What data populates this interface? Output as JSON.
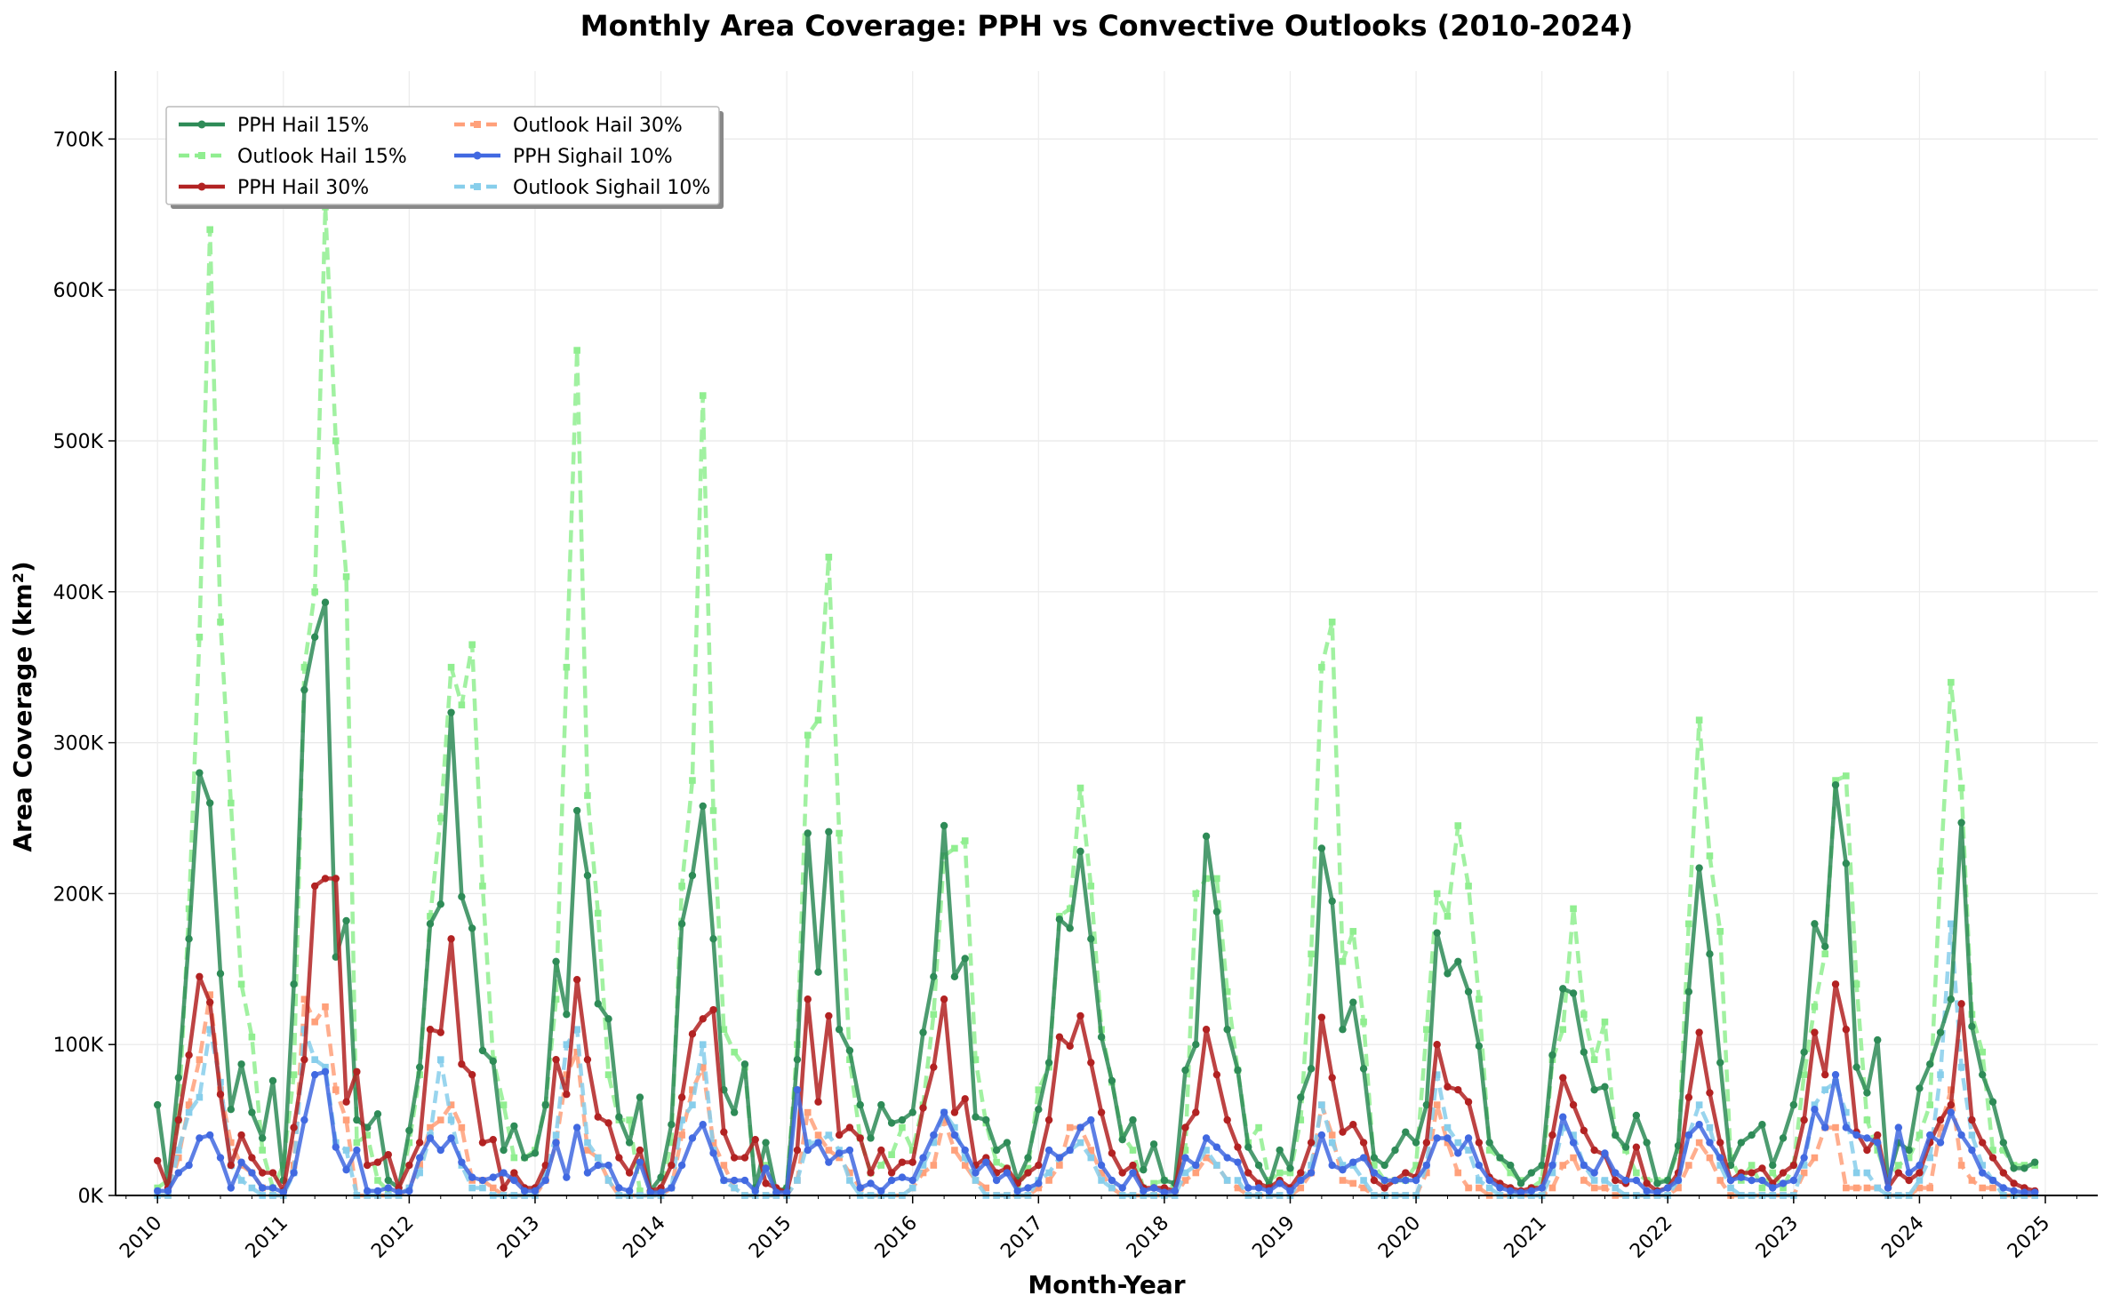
{
  "chart_data": {
    "type": "line",
    "title": "Monthly Area Coverage: PPH vs Convective Outlooks (2010-2024)",
    "xlabel": "Month-Year",
    "ylabel": "Area Coverage (km²)",
    "ylim": [
      0,
      745000
    ],
    "y_ticks": [
      {
        "value": 0,
        "label": "0K"
      },
      {
        "value": 100000,
        "label": "100K"
      },
      {
        "value": 200000,
        "label": "200K"
      },
      {
        "value": 300000,
        "label": "300K"
      },
      {
        "value": 400000,
        "label": "400K"
      },
      {
        "value": 500000,
        "label": "500K"
      },
      {
        "value": 600000,
        "label": "600K"
      },
      {
        "value": 700000,
        "label": "700K"
      }
    ],
    "x_ticks": [
      "2010",
      "2011",
      "2012",
      "2013",
      "2014",
      "2015",
      "2016",
      "2017",
      "2018",
      "2019",
      "2020",
      "2021",
      "2022",
      "2023",
      "2024",
      "2025"
    ],
    "x_range": [
      "2009-09",
      "2025-06"
    ],
    "grid": true,
    "legend_position": "top-left",
    "start_month": "2010-01",
    "series": [
      {
        "name": "PPH Hail 15%",
        "color": "#2e8b57",
        "style": "solid",
        "marker": "circle",
        "values": [
          60000,
          8000,
          78000,
          170000,
          280000,
          260000,
          147000,
          57000,
          87000,
          55000,
          38000,
          76000,
          10000,
          140000,
          335000,
          370000,
          393000,
          158000,
          182000,
          50000,
          45000,
          54000,
          10000,
          5000,
          43000,
          85000,
          180000,
          193000,
          320000,
          198000,
          177000,
          96000,
          89000,
          30000,
          46000,
          25000,
          28000,
          60000,
          155000,
          120000,
          255000,
          212000,
          127000,
          117000,
          52000,
          35000,
          65000,
          3000,
          12000,
          47000,
          180000,
          212000,
          258000,
          170000,
          70000,
          55000,
          87000,
          5000,
          35000,
          2000,
          5000,
          90000,
          240000,
          148000,
          241000,
          110000,
          96000,
          60000,
          38000,
          60000,
          48000,
          50000,
          55000,
          108000,
          145000,
          245000,
          145000,
          157000,
          52000,
          50000,
          30000,
          35000,
          10000,
          25000,
          57000,
          88000,
          183000,
          177000,
          228000,
          170000,
          105000,
          76000,
          37000,
          50000,
          17000,
          34000,
          10000,
          8000,
          83000,
          100000,
          238000,
          188000,
          110000,
          83000,
          32000,
          20000,
          7000,
          30000,
          18000,
          65000,
          84000,
          230000,
          195000,
          110000,
          128000,
          84000,
          25000,
          20000,
          30000,
          42000,
          35000,
          60000,
          174000,
          147000,
          155000,
          135000,
          99000,
          35000,
          25000,
          20000,
          8000,
          15000,
          20000,
          93000,
          137000,
          134000,
          95000,
          70000,
          72000,
          40000,
          32000,
          53000,
          35000,
          8000,
          10000,
          33000,
          135000,
          217000,
          160000,
          88000,
          20000,
          35000,
          40000,
          47000,
          20000,
          38000,
          60000,
          95000,
          180000,
          165000,
          272000,
          220000,
          85000,
          68000,
          103000,
          10000,
          35000,
          30000,
          71000,
          87000,
          108000,
          130000,
          247000,
          112000,
          80000,
          62000,
          35000,
          18000,
          18000,
          22000
        ]
      },
      {
        "name": "Outlook Hail 15%",
        "color": "#90ee90",
        "style": "dashed",
        "marker": "square",
        "values": [
          5000,
          10000,
          50000,
          190000,
          370000,
          640000,
          380000,
          260000,
          140000,
          105000,
          30000,
          5000,
          20000,
          80000,
          350000,
          400000,
          655000,
          500000,
          410000,
          35000,
          40000,
          10000,
          3000,
          3000,
          35000,
          80000,
          185000,
          250000,
          350000,
          325000,
          365000,
          205000,
          90000,
          60000,
          25000,
          25000,
          30000,
          60000,
          130000,
          350000,
          560000,
          265000,
          187000,
          80000,
          50000,
          50000,
          3000,
          2000,
          3000,
          35000,
          205000,
          275000,
          530000,
          255000,
          110000,
          95000,
          85000,
          5000,
          20000,
          3000,
          5000,
          100000,
          305000,
          315000,
          423000,
          240000,
          90000,
          38000,
          15000,
          20000,
          27000,
          45000,
          30000,
          60000,
          120000,
          225000,
          230000,
          235000,
          90000,
          48000,
          22000,
          18000,
          5000,
          18000,
          70000,
          85000,
          185000,
          190000,
          270000,
          205000,
          110000,
          75000,
          40000,
          30000,
          5000,
          8000,
          10000,
          5000,
          30000,
          200000,
          210000,
          210000,
          135000,
          83000,
          35000,
          45000,
          10000,
          15000,
          15000,
          50000,
          160000,
          350000,
          380000,
          155000,
          175000,
          115000,
          20000,
          10000,
          10000,
          10000,
          20000,
          110000,
          200000,
          185000,
          245000,
          205000,
          130000,
          30000,
          25000,
          15000,
          10000,
          5000,
          10000,
          90000,
          110000,
          190000,
          120000,
          90000,
          115000,
          40000,
          30000,
          15000,
          10000,
          10000,
          10000,
          30000,
          180000,
          315000,
          225000,
          175000,
          25000,
          10000,
          20000,
          5000,
          15000,
          5000,
          20000,
          80000,
          125000,
          160000,
          275000,
          278000,
          140000,
          50000,
          30000,
          10000,
          20000,
          25000,
          40000,
          60000,
          215000,
          340000,
          270000,
          120000,
          95000,
          30000,
          30000,
          20000,
          20000,
          20000
        ]
      },
      {
        "name": "PPH Hail 30%",
        "color": "#b22222",
        "style": "solid",
        "marker": "circle",
        "values": [
          23000,
          5000,
          50000,
          93000,
          145000,
          128000,
          67000,
          20000,
          40000,
          25000,
          15000,
          15000,
          3000,
          45000,
          90000,
          205000,
          210000,
          210000,
          62000,
          82000,
          20000,
          22000,
          27000,
          5000,
          20000,
          35000,
          110000,
          108000,
          170000,
          87000,
          80000,
          35000,
          37000,
          5000,
          15000,
          5000,
          5000,
          20000,
          90000,
          67000,
          143000,
          90000,
          52000,
          48000,
          25000,
          15000,
          30000,
          3000,
          5000,
          20000,
          65000,
          107000,
          117000,
          123000,
          42000,
          25000,
          25000,
          37000,
          8000,
          5000,
          2000,
          30000,
          130000,
          62000,
          119000,
          40000,
          45000,
          38000,
          15000,
          30000,
          15000,
          22000,
          22000,
          58000,
          85000,
          130000,
          55000,
          64000,
          20000,
          25000,
          15000,
          18000,
          8000,
          15000,
          20000,
          50000,
          105000,
          99000,
          119000,
          88000,
          55000,
          28000,
          15000,
          20000,
          5000,
          5000,
          5000,
          3000,
          45000,
          55000,
          110000,
          80000,
          50000,
          32000,
          15000,
          8000,
          5000,
          10000,
          5000,
          15000,
          35000,
          118000,
          78000,
          42000,
          47000,
          35000,
          10000,
          5000,
          10000,
          15000,
          12000,
          35000,
          100000,
          72000,
          70000,
          62000,
          35000,
          12000,
          8000,
          5000,
          3000,
          5000,
          5000,
          40000,
          78000,
          60000,
          43000,
          30000,
          27000,
          10000,
          8000,
          32000,
          8000,
          3000,
          5000,
          15000,
          65000,
          108000,
          68000,
          35000,
          10000,
          15000,
          15000,
          18000,
          8000,
          15000,
          20000,
          50000,
          108000,
          80000,
          140000,
          110000,
          42000,
          30000,
          40000,
          5000,
          15000,
          10000,
          15000,
          35000,
          50000,
          60000,
          127000,
          50000,
          35000,
          25000,
          15000,
          8000,
          5000,
          3000
        ]
      },
      {
        "name": "Outlook Hail 30%",
        "color": "#ffa07a",
        "style": "dashed",
        "marker": "square",
        "values": [
          0,
          0,
          25000,
          60000,
          90000,
          133000,
          70000,
          35000,
          20000,
          15000,
          5000,
          0,
          0,
          20000,
          130000,
          115000,
          125000,
          70000,
          50000,
          0,
          0,
          0,
          0,
          0,
          5000,
          20000,
          45000,
          50000,
          60000,
          45000,
          10000,
          10000,
          5000,
          0,
          0,
          0,
          0,
          10000,
          35000,
          80000,
          95000,
          30000,
          25000,
          10000,
          0,
          0,
          0,
          0,
          0,
          5000,
          40000,
          70000,
          85000,
          35000,
          20000,
          5000,
          0,
          0,
          0,
          0,
          0,
          10000,
          55000,
          40000,
          30000,
          25000,
          15000,
          5000,
          0,
          0,
          0,
          0,
          5000,
          15000,
          20000,
          50000,
          30000,
          20000,
          10000,
          5000,
          0,
          0,
          0,
          0,
          5000,
          10000,
          20000,
          45000,
          45000,
          30000,
          15000,
          5000,
          0,
          0,
          0,
          0,
          0,
          0,
          10000,
          15000,
          25000,
          20000,
          10000,
          5000,
          0,
          0,
          0,
          0,
          0,
          5000,
          15000,
          60000,
          40000,
          10000,
          8000,
          5000,
          0,
          0,
          0,
          0,
          0,
          15000,
          60000,
          35000,
          15000,
          5000,
          5000,
          0,
          0,
          0,
          0,
          0,
          0,
          5000,
          20000,
          25000,
          10000,
          5000,
          5000,
          0,
          0,
          0,
          0,
          0,
          0,
          5000,
          20000,
          35000,
          25000,
          10000,
          0,
          0,
          0,
          0,
          0,
          0,
          0,
          15000,
          25000,
          45000,
          45000,
          5000,
          5000,
          5000,
          5000,
          0,
          0,
          0,
          5000,
          5000,
          45000,
          70000,
          20000,
          10000,
          5000,
          5000,
          0,
          0,
          0,
          0
        ]
      },
      {
        "name": "PPH Sighail 10%",
        "color": "#4169e1",
        "style": "solid",
        "marker": "circle",
        "values": [
          3000,
          3000,
          15000,
          20000,
          38000,
          40000,
          25000,
          5000,
          22000,
          15000,
          5000,
          5000,
          2000,
          15000,
          50000,
          80000,
          82000,
          32000,
          17000,
          30000,
          3000,
          3000,
          5000,
          2000,
          3000,
          25000,
          38000,
          30000,
          38000,
          22000,
          12000,
          10000,
          12000,
          15000,
          10000,
          3000,
          3000,
          10000,
          35000,
          12000,
          45000,
          15000,
          20000,
          20000,
          5000,
          3000,
          22000,
          2000,
          2000,
          5000,
          20000,
          38000,
          47000,
          28000,
          10000,
          10000,
          10000,
          3000,
          18000,
          2000,
          2000,
          70000,
          30000,
          35000,
          22000,
          28000,
          30000,
          5000,
          8000,
          3000,
          10000,
          12000,
          10000,
          25000,
          40000,
          55000,
          40000,
          30000,
          15000,
          22000,
          10000,
          15000,
          3000,
          5000,
          8000,
          30000,
          25000,
          30000,
          45000,
          50000,
          20000,
          10000,
          5000,
          15000,
          3000,
          5000,
          2000,
          3000,
          25000,
          20000,
          38000,
          32000,
          25000,
          22000,
          5000,
          5000,
          3000,
          8000,
          3000,
          10000,
          15000,
          40000,
          20000,
          17000,
          22000,
          25000,
          15000,
          10000,
          10000,
          10000,
          10000,
          20000,
          38000,
          38000,
          28000,
          38000,
          20000,
          10000,
          5000,
          3000,
          2000,
          3000,
          5000,
          20000,
          52000,
          35000,
          20000,
          15000,
          28000,
          15000,
          10000,
          10000,
          3000,
          2000,
          5000,
          10000,
          40000,
          47000,
          35000,
          25000,
          10000,
          12000,
          10000,
          10000,
          5000,
          8000,
          10000,
          25000,
          57000,
          45000,
          80000,
          45000,
          40000,
          38000,
          35000,
          5000,
          45000,
          15000,
          20000,
          40000,
          35000,
          55000,
          40000,
          30000,
          15000,
          10000,
          5000,
          3000,
          2000,
          2000
        ]
      },
      {
        "name": "Outlook Sighail 10%",
        "color": "#87ceeb",
        "style": "dashed",
        "marker": "square",
        "values": [
          0,
          0,
          30000,
          55000,
          65000,
          110000,
          75000,
          20000,
          10000,
          5000,
          0,
          0,
          0,
          15000,
          110000,
          90000,
          85000,
          35000,
          30000,
          0,
          0,
          0,
          0,
          0,
          5000,
          15000,
          40000,
          90000,
          50000,
          20000,
          5000,
          5000,
          0,
          0,
          0,
          0,
          0,
          15000,
          40000,
          100000,
          110000,
          35000,
          25000,
          10000,
          0,
          0,
          0,
          0,
          0,
          5000,
          50000,
          60000,
          100000,
          30000,
          10000,
          5000,
          0,
          0,
          0,
          0,
          0,
          10000,
          35000,
          35000,
          40000,
          30000,
          10000,
          0,
          0,
          0,
          0,
          0,
          5000,
          20000,
          35000,
          55000,
          45000,
          25000,
          10000,
          0,
          0,
          0,
          0,
          0,
          10000,
          15000,
          25000,
          30000,
          35000,
          25000,
          10000,
          5000,
          0,
          0,
          0,
          0,
          0,
          0,
          15000,
          20000,
          30000,
          20000,
          10000,
          10000,
          0,
          0,
          0,
          0,
          0,
          10000,
          20000,
          60000,
          35000,
          20000,
          20000,
          10000,
          0,
          0,
          0,
          0,
          0,
          20000,
          80000,
          45000,
          35000,
          30000,
          10000,
          5000,
          0,
          0,
          0,
          0,
          0,
          15000,
          45000,
          40000,
          20000,
          10000,
          10000,
          5000,
          0,
          0,
          0,
          0,
          0,
          10000,
          40000,
          60000,
          45000,
          20000,
          5000,
          0,
          0,
          0,
          0,
          0,
          0,
          20000,
          60000,
          70000,
          75000,
          55000,
          15000,
          15000,
          5000,
          0,
          0,
          0,
          10000,
          25000,
          80000,
          180000,
          85000,
          40000,
          20000,
          10000,
          0,
          0,
          0,
          0
        ]
      }
    ]
  }
}
